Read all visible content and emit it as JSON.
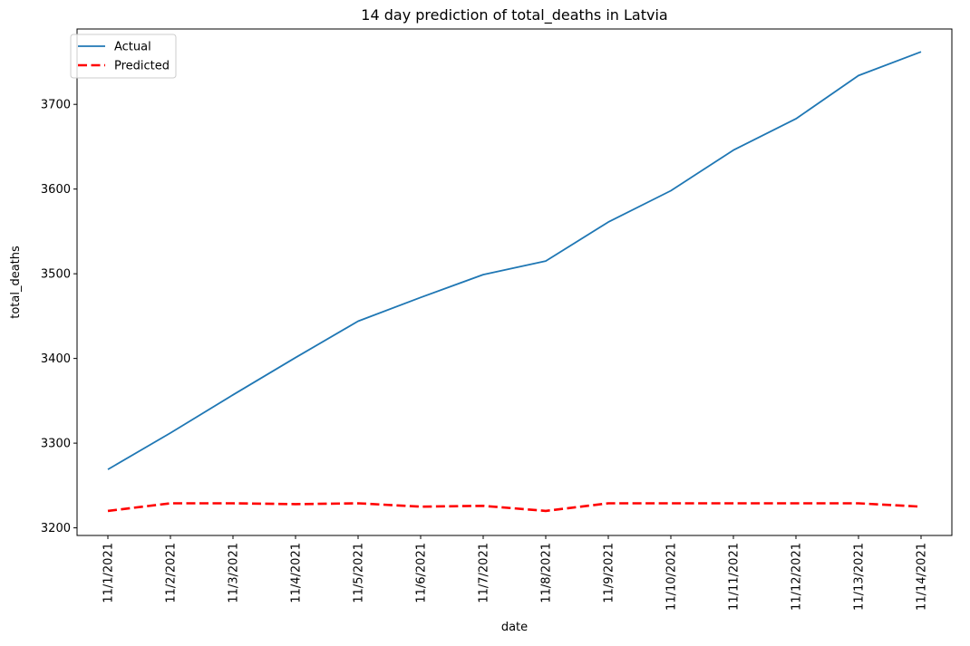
{
  "chart_data": {
    "type": "line",
    "title": "14 day prediction of total_deaths in Latvia",
    "xlabel": "date",
    "ylabel": "total_deaths",
    "categories": [
      "11/1/2021",
      "11/2/2021",
      "11/3/2021",
      "11/4/2021",
      "11/5/2021",
      "11/6/2021",
      "11/7/2021",
      "11/8/2021",
      "11/9/2021",
      "11/10/2021",
      "11/11/2021",
      "11/12/2021",
      "11/13/2021",
      "11/14/2021"
    ],
    "series": [
      {
        "name": "Actual",
        "color": "#1f77b4",
        "style": "solid",
        "values": [
          3269,
          3312,
          3357,
          3401,
          3444,
          3472,
          3499,
          3515,
          3561,
          3598,
          3646,
          3683,
          3734,
          3762
        ]
      },
      {
        "name": "Predicted",
        "color": "#ff0000",
        "style": "dashed",
        "values": [
          3220,
          3229,
          3229,
          3228,
          3229,
          3225,
          3226,
          3220,
          3229,
          3229,
          3229,
          3229,
          3229,
          3225
        ]
      }
    ],
    "yticks": [
      3200,
      3300,
      3400,
      3500,
      3600,
      3700
    ],
    "ylim": [
      3191,
      3789
    ],
    "grid": false,
    "legend_position": "top-left"
  }
}
